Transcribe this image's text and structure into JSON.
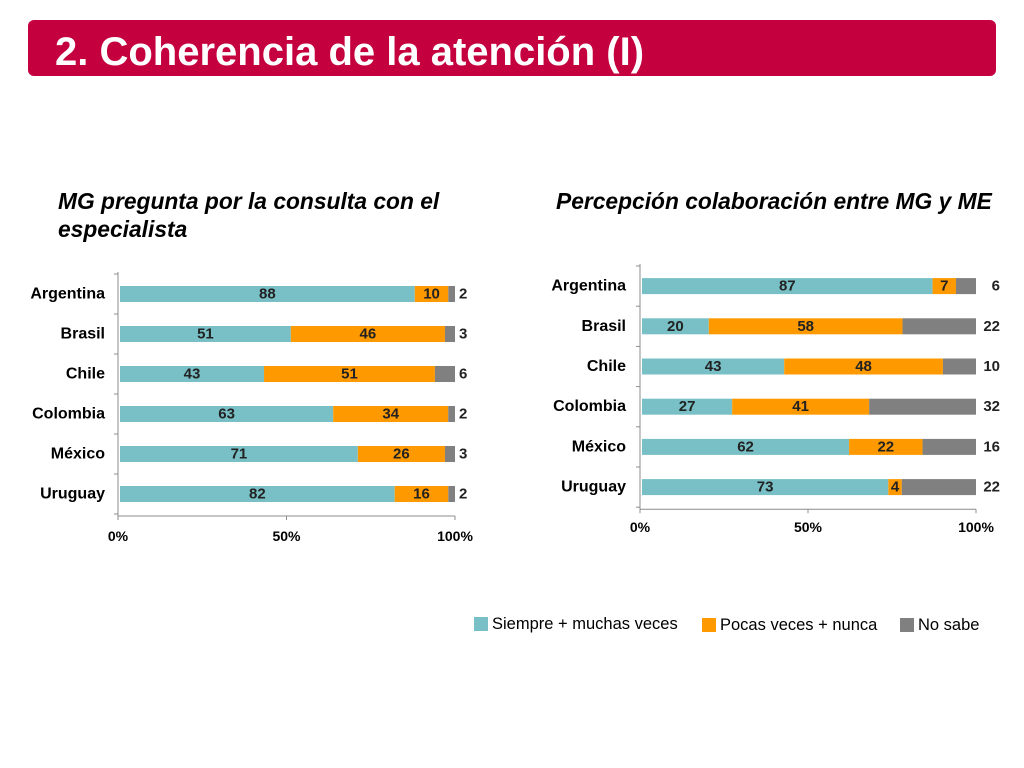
{
  "header": {
    "title": "2. Coherencia de la atención (I)",
    "color": "#C5003E"
  },
  "chart_data": [
    {
      "type": "bar",
      "orientation": "horizontal",
      "stacked": true,
      "title": "MG pregunta por la consulta con el especialista",
      "categories": [
        "Argentina",
        "Brasil",
        "Chile",
        "Colombia",
        "México",
        "Uruguay"
      ],
      "series": [
        {
          "name": "Siempre + muchas veces",
          "color": "#78C0C6",
          "values": [
            88,
            51,
            43,
            63,
            71,
            82
          ]
        },
        {
          "name": "Pocas veces + nunca",
          "color": "#FF9900",
          "values": [
            10,
            46,
            51,
            34,
            26,
            16
          ]
        },
        {
          "name": "No sabe",
          "color": "#808080",
          "values": [
            2,
            3,
            6,
            2,
            3,
            2
          ]
        }
      ],
      "xlim": [
        0,
        100
      ],
      "x_ticks": [
        "0%",
        "50%",
        "100%"
      ],
      "grid": false,
      "data_labels": true,
      "legend": "bottom"
    },
    {
      "type": "bar",
      "orientation": "horizontal",
      "stacked": true,
      "title": "Percepción colaboración entre MG y ME",
      "categories": [
        "Argentina",
        "Brasil",
        "Chile",
        "Colombia",
        "México",
        "Uruguay"
      ],
      "series": [
        {
          "name": "Siempre + muchas veces",
          "color": "#78C0C6",
          "values": [
            87,
            20,
            43,
            27,
            62,
            73
          ]
        },
        {
          "name": "Pocas veces + nunca",
          "color": "#FF9900",
          "values": [
            7,
            58,
            48,
            41,
            22,
            4
          ]
        },
        {
          "name": "No sabe",
          "color": "#808080",
          "values": [
            6,
            22,
            10,
            32,
            16,
            22
          ]
        }
      ],
      "xlim": [
        0,
        100
      ],
      "x_ticks": [
        "0%",
        "50%",
        "100%"
      ],
      "grid": false,
      "data_labels": true,
      "legend": "bottom"
    }
  ]
}
